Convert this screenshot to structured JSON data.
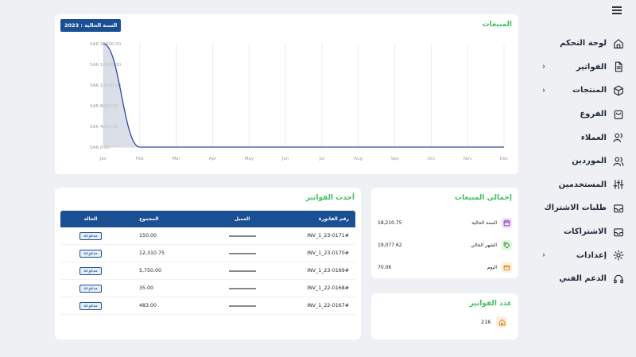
{
  "sidebar": {
    "items": [
      {
        "label": "لوحة التحكم",
        "icon": "home-icon",
        "chevron": false
      },
      {
        "label": "الفواتير",
        "icon": "document-icon",
        "chevron": true
      },
      {
        "label": "المنتجات",
        "icon": "box-icon",
        "chevron": true
      },
      {
        "label": "الفروع",
        "icon": "store-icon",
        "chevron": false
      },
      {
        "label": "العملاء",
        "icon": "user-icon",
        "chevron": false
      },
      {
        "label": "الموردين",
        "icon": "users-icon",
        "chevron": false
      },
      {
        "label": "المستخدمين",
        "icon": "sliders-icon",
        "chevron": false
      },
      {
        "label": "طلبات الاشتراك",
        "icon": "inbox-icon",
        "chevron": false
      },
      {
        "label": "الاشتراكات",
        "icon": "inbox-icon",
        "chevron": false
      },
      {
        "label": "إعدادات",
        "icon": "gear-icon",
        "chevron": true
      },
      {
        "label": "الدعم الفني",
        "icon": "headset-icon",
        "chevron": false
      }
    ],
    "chevron_glyph": "›"
  },
  "sales": {
    "title": "المبيعات",
    "year_badge": "السنة الحالية : 2023"
  },
  "chart_data": {
    "type": "area",
    "categories": [
      "Jan",
      "Feb",
      "Mar",
      "Apr",
      "May",
      "Jun",
      "Jul",
      "Aug",
      "Sep",
      "Oct",
      "Nov",
      "Dec"
    ],
    "yticks": [
      "SAR 0.00",
      "SAR 4000.00",
      "SAR 8000.00",
      "SAR 12000.00",
      "SAR 16000.00",
      "SAR 20000.00"
    ],
    "ylim": [
      0,
      20000
    ],
    "series": [
      {
        "values": [
          20000,
          0,
          0,
          0,
          0,
          0,
          0,
          0,
          0,
          0,
          0,
          0
        ]
      }
    ],
    "line_color": "#2d4a9e",
    "grid": "vertical"
  },
  "invoices": {
    "title": "أحدث الفواتير",
    "columns": {
      "number": "رقم الفاتورة",
      "client": "العميل",
      "total": "المجموع",
      "status": "الحالة"
    },
    "rows": [
      {
        "number": "INV_1_23-0171#",
        "total": "150.00",
        "status": "مدفوعة"
      },
      {
        "number": "INV_1_23-0170#",
        "total": "12,310.75",
        "status": "مدفوعة"
      },
      {
        "number": "INV_1_23-0169#",
        "total": "5,750.00",
        "status": "مدفوعة"
      },
      {
        "number": "INV_1_22-0168#",
        "total": "35.00",
        "status": "مدفوعة"
      },
      {
        "number": "INV_1_22-0167#",
        "total": "483.00",
        "status": "مدفوعة"
      }
    ]
  },
  "total_sales": {
    "title": "إجمالي المبيعات",
    "rows": [
      {
        "label": "السنة الحالية",
        "value": "18,210.75",
        "icon": "calendar-icon",
        "icon_bg": "#efe3f7",
        "icon_color": "#8a3fb8"
      },
      {
        "label": "الشهر الحالي",
        "value": "19,077.62",
        "icon": "tag-icon",
        "icon_bg": "#e5f5e3",
        "icon_color": "#3d9a3d"
      },
      {
        "label": "اليوم",
        "value": "70.06",
        "icon": "wallet-icon",
        "icon_bg": "#fcefd8",
        "icon_color": "#d08a1e"
      }
    ]
  },
  "invoice_count": {
    "title": "عدد الفواتير",
    "value": "216",
    "icon": "home-icon"
  }
}
